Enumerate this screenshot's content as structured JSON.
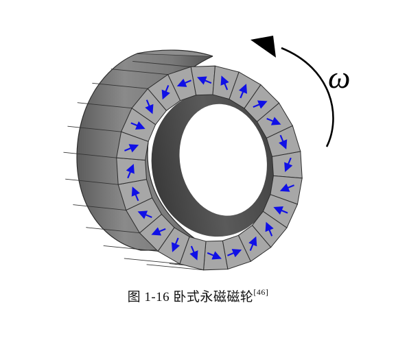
{
  "rotation_symbol": "ω",
  "caption": {
    "prefix": "图 1-16",
    "title": "卧式永磁磁轮",
    "reference": "[46]"
  },
  "colors": {
    "outer_face_light": "#9a9a9a",
    "outer_face_dark": "#5a5a5a",
    "segment_face": "#a7a7a7",
    "bore": "#4e4e4e",
    "edge": "#2b2b2b",
    "magnetization_arrow": "#1010e6"
  },
  "magnet_segments": 24
}
